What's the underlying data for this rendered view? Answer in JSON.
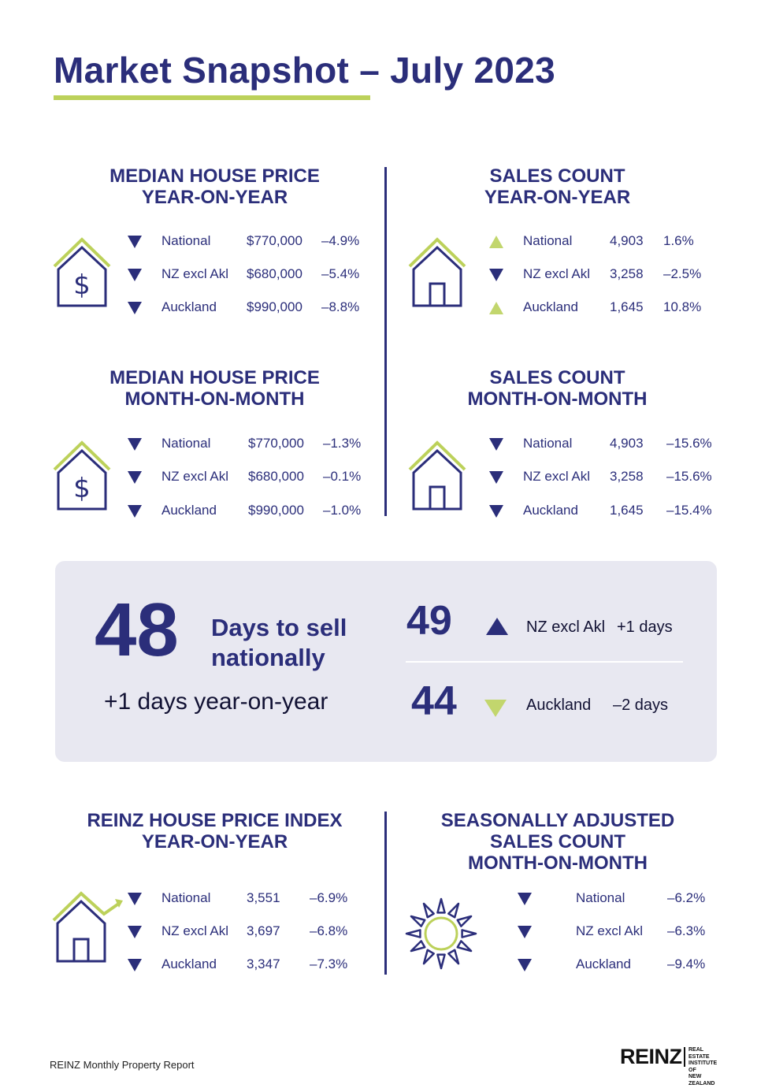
{
  "title": "Market Snapshot – July 2023",
  "colors": {
    "navy": "#2b2e7a",
    "lime": "#bcd15a",
    "panel": "#e8e8f1"
  },
  "sections": {
    "mhp_yoy": {
      "heading": [
        "MEDIAN HOUSE PRICE",
        "YEAR-ON-YEAR"
      ],
      "icon": "house-dollar-icon",
      "rows": [
        {
          "dir": "down",
          "label": "National",
          "value": "$770,000",
          "change": "–4.9%"
        },
        {
          "dir": "down",
          "label": "NZ excl Akl",
          "value": "$680,000",
          "change": "–5.4%"
        },
        {
          "dir": "down",
          "label": "Auckland",
          "value": "$990,000",
          "change": "–8.8%"
        }
      ]
    },
    "sc_yoy": {
      "heading": [
        "SALES COUNT",
        "YEAR-ON-YEAR"
      ],
      "icon": "house-icon",
      "rows": [
        {
          "dir": "up",
          "label": "National",
          "value": "4,903",
          "change": "1.6%"
        },
        {
          "dir": "down",
          "label": "NZ excl Akl",
          "value": "3,258",
          "change": "–2.5%"
        },
        {
          "dir": "up",
          "label": "Auckland",
          "value": "1,645",
          "change": "10.8%"
        }
      ]
    },
    "mhp_mom": {
      "heading": [
        "MEDIAN HOUSE PRICE",
        "MONTH-ON-MONTH"
      ],
      "icon": "house-dollar-icon",
      "rows": [
        {
          "dir": "down",
          "label": "National",
          "value": "$770,000",
          "change": "–1.3%"
        },
        {
          "dir": "down",
          "label": "NZ excl Akl",
          "value": "$680,000",
          "change": "–0.1%"
        },
        {
          "dir": "down",
          "label": "Auckland",
          "value": "$990,000",
          "change": "–1.0%"
        }
      ]
    },
    "sc_mom": {
      "heading": [
        "SALES COUNT",
        "MONTH-ON-MONTH"
      ],
      "icon": "house-icon",
      "rows": [
        {
          "dir": "down",
          "label": "National",
          "value": "4,903",
          "change": "–15.6%"
        },
        {
          "dir": "down",
          "label": "NZ excl Akl",
          "value": "3,258",
          "change": "–15.6%"
        },
        {
          "dir": "down",
          "label": "Auckland",
          "value": "1,645",
          "change": "–15.4%"
        }
      ]
    },
    "hpi_yoy": {
      "heading": [
        "REINZ HOUSE PRICE INDEX",
        "YEAR-ON-YEAR"
      ],
      "icon": "house-trend-icon",
      "rows": [
        {
          "dir": "down",
          "label": "National",
          "value": "3,551",
          "change": "–6.9%"
        },
        {
          "dir": "down",
          "label": "NZ excl Akl",
          "value": "3,697",
          "change": "–6.8%"
        },
        {
          "dir": "down",
          "label": "Auckland",
          "value": "3,347",
          "change": "–7.3%"
        }
      ]
    },
    "sa_mom": {
      "heading": [
        "SEASONALLY ADJUSTED",
        "SALES COUNT",
        "MONTH-ON-MONTH"
      ],
      "icon": "sun-icon",
      "rows": [
        {
          "dir": "down",
          "label": "National",
          "change": "–6.2%"
        },
        {
          "dir": "down",
          "label": "NZ excl Akl",
          "change": "–6.3%"
        },
        {
          "dir": "down",
          "label": "Auckland",
          "change": "–9.4%"
        }
      ]
    }
  },
  "days_to_sell": {
    "national_days": "48",
    "label_line1": "Days to sell",
    "label_line2": "nationally",
    "yoy_text": "+1 days year-on-year",
    "regions": [
      {
        "days": "49",
        "dir": "up",
        "label": "NZ excl Akl",
        "change": "+1 days"
      },
      {
        "days": "44",
        "dir": "down",
        "label": "Auckland",
        "change": "–2 days"
      }
    ]
  },
  "footer": "REINZ Monthly Property Report",
  "logo": {
    "name": "REINZ",
    "sub": [
      "REAL ESTATE",
      "INSTITUTE OF",
      "NEW ZEALAND"
    ]
  }
}
